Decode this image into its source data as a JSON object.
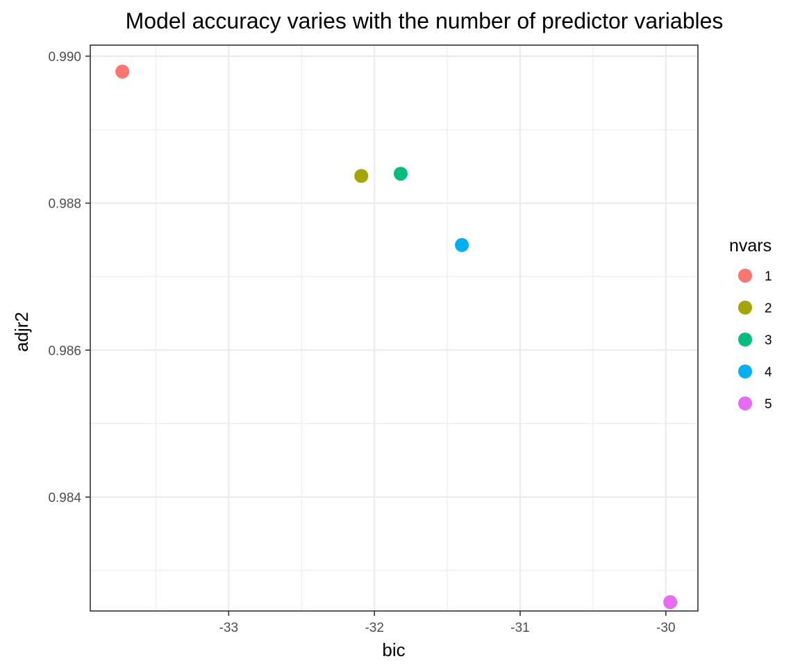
{
  "chart_data": {
    "type": "scatter",
    "title": "Model accuracy varies with the number of predictor variables",
    "xlabel": "bic",
    "ylabel": "adjr2",
    "xlim": [
      -33.95,
      -29.78
    ],
    "ylim": [
      0.98245,
      0.99015
    ],
    "x_ticks": [
      -33,
      -32,
      -31,
      -30
    ],
    "x_tick_labels": [
      "-33",
      "-32",
      "-31",
      "-30"
    ],
    "y_ticks": [
      0.984,
      0.986,
      0.988,
      0.99
    ],
    "y_tick_labels": [
      "0.984",
      "0.986",
      "0.988",
      "0.990"
    ],
    "grid": true,
    "legend": {
      "title": "nvars",
      "position": "right"
    },
    "points": [
      {
        "nvars": "1",
        "x": -33.73,
        "y": 0.98979,
        "color": "#F8766D"
      },
      {
        "nvars": "2",
        "x": -32.09,
        "y": 0.98837,
        "color": "#A3A500"
      },
      {
        "nvars": "3",
        "x": -31.82,
        "y": 0.9884,
        "color": "#00BF7D"
      },
      {
        "nvars": "4",
        "x": -31.4,
        "y": 0.98743,
        "color": "#00B0F6"
      },
      {
        "nvars": "5",
        "x": -29.97,
        "y": 0.98257,
        "color": "#E76BF3"
      }
    ]
  }
}
